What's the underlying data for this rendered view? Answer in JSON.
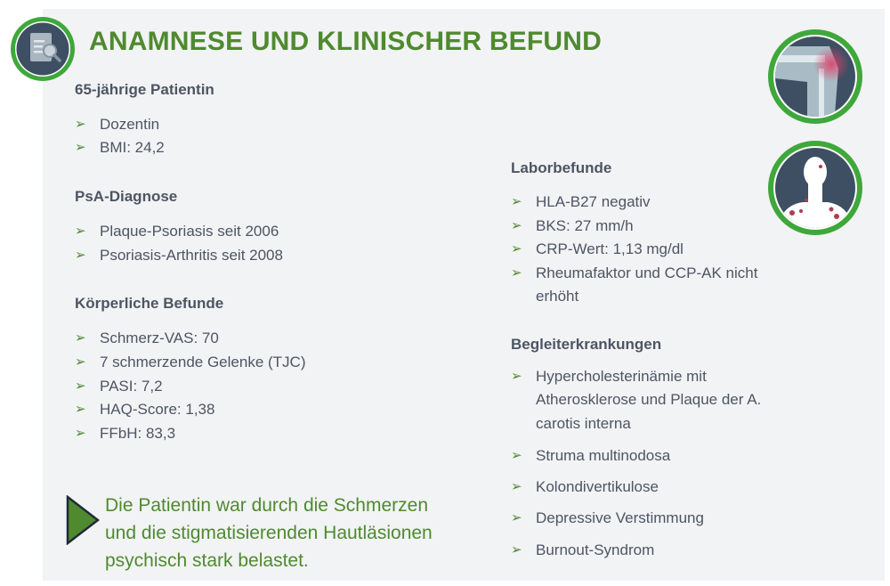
{
  "title": "ANAMNESE UND KLINISCHER BEFUND",
  "colors": {
    "accent": "#4f8a2f",
    "ring": "#3ea83a",
    "icon_bg": "#3e4f63",
    "background": "#f2f3f5"
  },
  "bullet_icon": "arrowhead-bullet",
  "left": [
    {
      "heading": "65-jährige Patientin",
      "items": [
        "Dozentin",
        "BMI: 24,2"
      ]
    },
    {
      "heading": "PsA-Diagnose",
      "items": [
        "Plaque-Psoriasis seit 2006",
        "Psoriasis-Arthritis seit 2008"
      ]
    },
    {
      "heading": "Körperliche Befunde",
      "items": [
        "Schmerz-VAS: 70",
        "7 schmerzende Gelenke (TJC)",
        "PASI: 7,2",
        "HAQ-Score: 1,38",
        "FFbH: 83,3"
      ]
    }
  ],
  "right": [
    {
      "heading": "Laborbefunde",
      "items": [
        "HLA-B27 negativ",
        "BKS: 27 mm/h",
        "CRP-Wert:  1,13 mg/dl",
        "Rheumafaktor und CCP-AK nicht",
        "erhöht"
      ]
    },
    {
      "heading": "Begleiterkrankungen",
      "items": [
        "Hypercholesterinämie mit",
        "Atherosklerose und Plaque der A.",
        "carotis interna",
        "Struma multinodosa",
        "Kolondivertikulose",
        "Depressive Verstimmung",
        "Burnout-Syndrom"
      ]
    }
  ],
  "callout": [
    "Die Patientin war durch die Schmerzen",
    "und die stigmatisierenden Hautläsionen",
    "psychisch stark belastet."
  ]
}
